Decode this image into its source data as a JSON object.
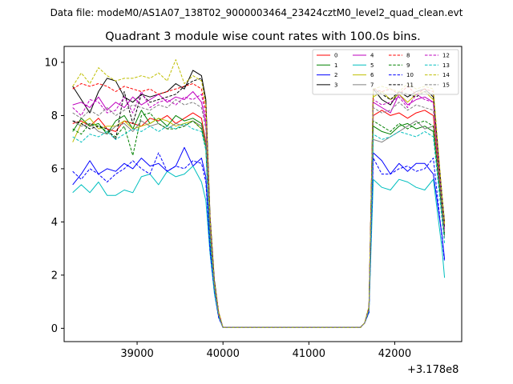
{
  "chart_data": {
    "type": "line",
    "suptitle": "Data file: modeM0/AS1A07_138T02_9000003464_23424cztM0_level2_quad_clean.evt",
    "title": "Quadrant 3 module wise count rates with 100.0s bins.",
    "xlabel": "",
    "ylabel": "",
    "x_offset_label": "+3.178e8",
    "xlim": [
      38150,
      42780
    ],
    "ylim": [
      -0.5,
      10.6
    ],
    "x_ticks": [
      39000,
      40000,
      41000,
      42000
    ],
    "x_tick_labels": [
      "39000",
      "40000",
      "41000",
      "42000"
    ],
    "y_ticks": [
      0,
      2,
      4,
      6,
      8,
      10
    ],
    "y_tick_labels": [
      "0",
      "2",
      "4",
      "6",
      "8",
      "10"
    ],
    "legend_position": "top-right",
    "x": [
      38250,
      38350,
      38450,
      38550,
      38650,
      38750,
      38850,
      38950,
      39050,
      39150,
      39250,
      39350,
      39450,
      39550,
      39650,
      39750,
      39800,
      39850,
      39900,
      39950,
      40000,
      40100,
      40200,
      40300,
      40400,
      40500,
      40600,
      40700,
      40800,
      40900,
      41000,
      41100,
      41200,
      41300,
      41400,
      41500,
      41600,
      41650,
      41700,
      41750,
      41850,
      41950,
      42050,
      42150,
      42250,
      42350,
      42450,
      42550,
      42580
    ],
    "series": [
      {
        "name": "0",
        "color": "#ff0000",
        "dash": "solid",
        "values": [
          7.7,
          7.8,
          7.6,
          7.9,
          7.5,
          7.4,
          7.8,
          7.7,
          7.6,
          7.9,
          7.8,
          8.0,
          7.7,
          7.9,
          8.1,
          7.9,
          7.0,
          3.5,
          1.5,
          0.5,
          0.03,
          0.03,
          0.03,
          0.03,
          0.03,
          0.03,
          0.03,
          0.03,
          0.03,
          0.03,
          0.03,
          0.03,
          0.03,
          0.03,
          0.03,
          0.03,
          0.03,
          0.2,
          0.7,
          8.0,
          8.2,
          8.0,
          8.1,
          7.9,
          8.1,
          8.2,
          8.0,
          4.5,
          3.6
        ]
      },
      {
        "name": "1",
        "color": "#008000",
        "dash": "solid",
        "values": [
          7.4,
          7.9,
          7.6,
          7.7,
          7.3,
          7.8,
          8.0,
          7.5,
          8.2,
          7.7,
          7.9,
          7.6,
          8.0,
          7.8,
          7.9,
          7.7,
          6.9,
          3.4,
          1.5,
          0.5,
          0.03,
          0.03,
          0.03,
          0.03,
          0.03,
          0.03,
          0.03,
          0.03,
          0.03,
          0.03,
          0.03,
          0.03,
          0.03,
          0.03,
          0.03,
          0.03,
          0.03,
          0.2,
          0.7,
          7.6,
          7.4,
          7.3,
          7.6,
          7.7,
          7.5,
          7.6,
          7.4,
          4.4,
          3.5
        ]
      },
      {
        "name": "2",
        "color": "#0000ff",
        "dash": "solid",
        "values": [
          5.4,
          5.8,
          6.3,
          5.8,
          6.0,
          5.9,
          6.2,
          6.0,
          6.4,
          6.1,
          6.2,
          5.9,
          6.1,
          6.8,
          6.1,
          6.4,
          5.7,
          3.0,
          1.4,
          0.5,
          0.03,
          0.03,
          0.03,
          0.03,
          0.03,
          0.03,
          0.03,
          0.03,
          0.03,
          0.03,
          0.03,
          0.03,
          0.03,
          0.03,
          0.03,
          0.03,
          0.03,
          0.2,
          0.6,
          6.6,
          6.3,
          5.8,
          6.2,
          5.9,
          6.2,
          6.2,
          5.8,
          3.5,
          2.6
        ]
      },
      {
        "name": "3",
        "color": "#000000",
        "dash": "solid",
        "values": [
          9.1,
          8.6,
          8.1,
          8.9,
          9.4,
          9.3,
          8.7,
          8.5,
          8.8,
          8.7,
          8.8,
          8.9,
          9.2,
          9.0,
          9.7,
          9.5,
          8.6,
          4.2,
          1.8,
          0.6,
          0.03,
          0.03,
          0.03,
          0.03,
          0.03,
          0.03,
          0.03,
          0.03,
          0.03,
          0.03,
          0.03,
          0.03,
          0.03,
          0.03,
          0.03,
          0.03,
          0.03,
          0.2,
          0.8,
          9.0,
          8.6,
          8.4,
          8.9,
          8.7,
          8.9,
          9.0,
          8.7,
          5.0,
          4.0
        ]
      },
      {
        "name": "4",
        "color": "#bf00bf",
        "dash": "solid",
        "values": [
          8.4,
          8.5,
          8.3,
          8.7,
          8.2,
          8.5,
          8.3,
          8.7,
          8.4,
          8.6,
          8.8,
          8.5,
          8.7,
          8.6,
          8.9,
          8.5,
          7.7,
          3.8,
          1.6,
          0.5,
          0.03,
          0.03,
          0.03,
          0.03,
          0.03,
          0.03,
          0.03,
          0.03,
          0.03,
          0.03,
          0.03,
          0.03,
          0.03,
          0.03,
          0.03,
          0.03,
          0.03,
          0.2,
          0.7,
          8.5,
          8.3,
          8.1,
          8.8,
          8.4,
          8.6,
          8.7,
          8.5,
          4.8,
          3.8
        ]
      },
      {
        "name": "5",
        "color": "#00bfbf",
        "dash": "solid",
        "values": [
          5.1,
          5.4,
          5.1,
          5.5,
          5.0,
          5.0,
          5.2,
          5.1,
          5.7,
          5.8,
          5.4,
          5.9,
          5.7,
          5.8,
          6.1,
          5.5,
          4.8,
          2.8,
          1.3,
          0.4,
          0.03,
          0.03,
          0.03,
          0.03,
          0.03,
          0.03,
          0.03,
          0.03,
          0.03,
          0.03,
          0.03,
          0.03,
          0.03,
          0.03,
          0.03,
          0.03,
          0.03,
          0.2,
          0.6,
          5.6,
          5.3,
          5.2,
          5.6,
          5.5,
          5.3,
          5.2,
          5.6,
          3.0,
          1.9
        ]
      },
      {
        "name": "6",
        "color": "#bfbf00",
        "dash": "solid",
        "values": [
          7.0,
          7.7,
          7.9,
          7.5,
          7.6,
          7.6,
          7.8,
          7.5,
          7.6,
          7.7,
          7.9,
          7.8,
          7.6,
          7.7,
          7.8,
          7.5,
          6.8,
          3.4,
          1.5,
          0.5,
          0.03,
          0.03,
          0.03,
          0.03,
          0.03,
          0.03,
          0.03,
          0.03,
          0.03,
          0.03,
          0.03,
          0.03,
          0.03,
          0.03,
          0.03,
          0.03,
          0.03,
          0.2,
          0.7,
          8.7,
          8.9,
          8.6,
          8.8,
          8.5,
          8.8,
          8.9,
          8.6,
          4.8,
          3.9
        ]
      },
      {
        "name": "7",
        "color": "#808080",
        "dash": "solid",
        "values": [
          7.8,
          7.6,
          7.7,
          7.4,
          7.3,
          7.6,
          7.7,
          7.4,
          7.8,
          7.6,
          7.7,
          7.5,
          7.7,
          7.6,
          7.8,
          7.6,
          6.9,
          3.4,
          1.5,
          0.5,
          0.03,
          0.03,
          0.03,
          0.03,
          0.03,
          0.03,
          0.03,
          0.03,
          0.03,
          0.03,
          0.03,
          0.03,
          0.03,
          0.03,
          0.03,
          0.03,
          0.03,
          0.2,
          0.7,
          7.1,
          7.0,
          7.2,
          7.4,
          7.6,
          7.8,
          7.5,
          7.6,
          4.3,
          3.4
        ]
      },
      {
        "name": "8",
        "color": "#ff0000",
        "dash": "dashed",
        "values": [
          9.0,
          9.2,
          9.1,
          9.2,
          9.1,
          8.9,
          9.1,
          9.0,
          8.9,
          9.0,
          8.8,
          8.9,
          9.0,
          9.1,
          9.2,
          9.0,
          8.2,
          4.0,
          1.7,
          0.6,
          0.03,
          0.03,
          0.03,
          0.03,
          0.03,
          0.03,
          0.03,
          0.03,
          0.03,
          0.03,
          0.03,
          0.03,
          0.03,
          0.03,
          0.03,
          0.03,
          0.03,
          0.2,
          0.8,
          9.0,
          8.9,
          9.0,
          8.8,
          9.1,
          8.8,
          9.0,
          8.9,
          4.9,
          3.9
        ]
      },
      {
        "name": "9",
        "color": "#008000",
        "dash": "dashed",
        "values": [
          7.5,
          7.3,
          7.7,
          7.6,
          7.4,
          7.2,
          7.6,
          6.5,
          8.0,
          8.1,
          7.7,
          7.5,
          7.5,
          7.6,
          7.8,
          7.5,
          6.8,
          3.3,
          1.5,
          0.5,
          0.03,
          0.03,
          0.03,
          0.03,
          0.03,
          0.03,
          0.03,
          0.03,
          0.03,
          0.03,
          0.03,
          0.03,
          0.03,
          0.03,
          0.03,
          0.03,
          0.03,
          0.2,
          0.7,
          7.8,
          7.6,
          7.4,
          7.7,
          7.5,
          7.7,
          7.8,
          7.6,
          4.4,
          3.5
        ]
      },
      {
        "name": "10",
        "color": "#0000ff",
        "dash": "dashed",
        "values": [
          5.9,
          5.6,
          6.0,
          5.8,
          5.5,
          5.8,
          6.0,
          6.3,
          6.0,
          5.8,
          6.6,
          5.9,
          6.1,
          6.0,
          6.3,
          6.2,
          5.5,
          2.9,
          1.4,
          0.4,
          0.03,
          0.03,
          0.03,
          0.03,
          0.03,
          0.03,
          0.03,
          0.03,
          0.03,
          0.03,
          0.03,
          0.03,
          0.03,
          0.03,
          0.03,
          0.03,
          0.03,
          0.2,
          0.6,
          6.4,
          5.8,
          5.8,
          6.0,
          6.1,
          5.9,
          6.0,
          6.4,
          3.4,
          2.5
        ]
      },
      {
        "name": "11",
        "color": "#000000",
        "dash": "dashed",
        "values": [
          7.8,
          7.7,
          7.5,
          7.6,
          7.5,
          7.1,
          8.9,
          7.7,
          8.8,
          8.5,
          8.6,
          8.7,
          8.8,
          9.1,
          9.3,
          9.4,
          8.5,
          4.1,
          1.7,
          0.5,
          0.03,
          0.03,
          0.03,
          0.03,
          0.03,
          0.03,
          0.03,
          0.03,
          0.03,
          0.03,
          0.03,
          0.03,
          0.03,
          0.03,
          0.03,
          0.03,
          0.03,
          0.2,
          0.7,
          9.0,
          8.8,
          8.6,
          8.9,
          8.8,
          8.7,
          8.9,
          8.8,
          4.8,
          3.8
        ]
      },
      {
        "name": "12",
        "color": "#bf00bf",
        "dash": "dashed",
        "values": [
          8.3,
          8.0,
          8.6,
          8.5,
          8.1,
          8.2,
          8.7,
          8.1,
          8.9,
          8.3,
          8.5,
          8.6,
          8.4,
          8.7,
          8.6,
          8.8,
          7.9,
          3.9,
          1.6,
          0.5,
          0.03,
          0.03,
          0.03,
          0.03,
          0.03,
          0.03,
          0.03,
          0.03,
          0.03,
          0.03,
          0.03,
          0.03,
          0.03,
          0.03,
          0.03,
          0.03,
          0.03,
          0.2,
          0.7,
          8.6,
          8.4,
          8.5,
          8.7,
          8.3,
          8.8,
          8.6,
          8.5,
          4.7,
          3.7
        ]
      },
      {
        "name": "13",
        "color": "#00bfbf",
        "dash": "dashed",
        "values": [
          7.2,
          7.0,
          7.3,
          7.2,
          7.4,
          7.1,
          7.3,
          7.5,
          7.4,
          7.6,
          7.4,
          7.6,
          7.5,
          7.7,
          7.5,
          7.4,
          6.7,
          3.3,
          1.5,
          0.5,
          0.03,
          0.03,
          0.03,
          0.03,
          0.03,
          0.03,
          0.03,
          0.03,
          0.03,
          0.03,
          0.03,
          0.03,
          0.03,
          0.03,
          0.03,
          0.03,
          0.03,
          0.2,
          0.7,
          7.3,
          7.1,
          7.2,
          7.4,
          7.3,
          7.2,
          7.4,
          7.2,
          4.1,
          3.2
        ]
      },
      {
        "name": "14",
        "color": "#bfbf00",
        "dash": "dashed",
        "values": [
          9.1,
          9.6,
          9.2,
          9.8,
          9.5,
          9.3,
          9.4,
          9.4,
          9.5,
          9.4,
          9.6,
          9.3,
          10.1,
          9.2,
          9.5,
          9.3,
          8.4,
          4.1,
          1.7,
          0.6,
          0.03,
          0.03,
          0.03,
          0.03,
          0.03,
          0.03,
          0.03,
          0.03,
          0.03,
          0.03,
          0.03,
          0.03,
          0.03,
          0.03,
          0.03,
          0.03,
          0.03,
          0.2,
          0.8,
          9.0,
          9.1,
          9.0,
          8.9,
          9.2,
          9.0,
          9.1,
          9.0,
          5.0,
          3.9
        ]
      },
      {
        "name": "15",
        "color": "#808080",
        "dash": "dashed",
        "values": [
          8.1,
          7.9,
          8.2,
          8.0,
          8.3,
          8.0,
          8.2,
          8.4,
          8.3,
          8.2,
          8.4,
          8.3,
          8.6,
          8.4,
          8.5,
          8.3,
          7.5,
          3.7,
          1.6,
          0.5,
          0.03,
          0.03,
          0.03,
          0.03,
          0.03,
          0.03,
          0.03,
          0.03,
          0.03,
          0.03,
          0.03,
          0.03,
          0.03,
          0.03,
          0.03,
          0.03,
          0.03,
          0.2,
          0.7,
          8.3,
          8.1,
          8.2,
          8.5,
          8.2,
          8.4,
          8.3,
          8.2,
          4.6,
          3.6
        ]
      }
    ]
  }
}
